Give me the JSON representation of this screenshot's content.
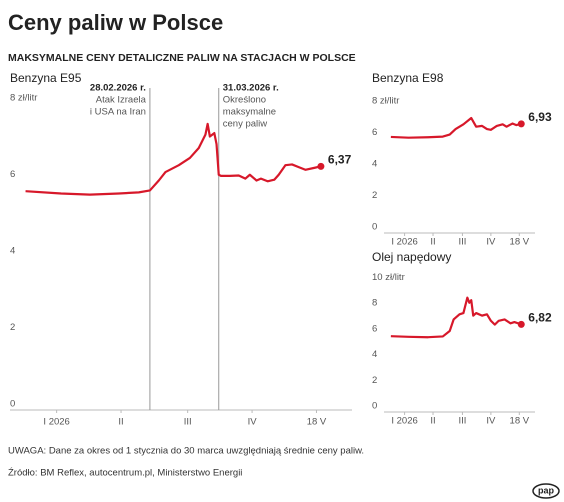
{
  "header": {
    "title": "Ceny paliw w Polsce",
    "subtitle": "MAKSYMALNE CENY DETALICZNE PALIW NA STACJACH W POLSCE"
  },
  "chart_data": [
    {
      "type": "line",
      "title": "Benzyna E95",
      "color": "#d7182a",
      "x": [
        2,
        18,
        31,
        44,
        53,
        58,
        62,
        65,
        71,
        76,
        80,
        83,
        84,
        85,
        87,
        88,
        89,
        90,
        94,
        98,
        101,
        103,
        106,
        108,
        111,
        114,
        116,
        119,
        122,
        125,
        128,
        132,
        135
      ],
      "values": [
        5.72,
        5.66,
        5.63,
        5.66,
        5.69,
        5.74,
        6.0,
        6.22,
        6.4,
        6.59,
        6.85,
        7.2,
        7.48,
        7.15,
        7.24,
        6.95,
        6.15,
        6.12,
        6.12,
        6.13,
        6.05,
        6.15,
        6.0,
        6.05,
        5.98,
        6.02,
        6.15,
        6.4,
        6.42,
        6.35,
        6.28,
        6.33,
        6.37
      ],
      "value_labels": [
        null,
        null,
        null,
        null,
        null,
        null,
        null,
        null,
        null,
        null,
        null,
        null,
        null,
        null,
        null,
        null,
        null,
        null,
        null,
        null,
        null,
        null,
        null,
        null,
        null,
        null,
        null,
        null,
        null,
        null,
        null,
        null,
        "6,37"
      ],
      "xlim": [
        -5,
        149
      ],
      "xticks": [
        {
          "value": 16,
          "label": "I 2026"
        },
        {
          "value": 45,
          "label": "II"
        },
        {
          "value": 75,
          "label": "III"
        },
        {
          "value": 104,
          "label": "IV"
        },
        {
          "value": 133,
          "label": "18 V"
        }
      ],
      "ylim": [
        0,
        8
      ],
      "yticks": [
        0,
        2,
        4,
        6,
        {
          "value": 8,
          "label": "8 zł/litr"
        }
      ],
      "grid": false,
      "annotations": [
        {
          "x": 58,
          "label": "28.02.2026 r.",
          "lines": [
            "Atak Izraela",
            "i USA na Iran"
          ]
        },
        {
          "x": 89,
          "label": "31.03.2026 r.",
          "lines": [
            "Określono",
            "maksymalne",
            "ceny paliw"
          ]
        }
      ]
    },
    {
      "type": "line",
      "title": "Benzyna E98",
      "color": "#d7182a",
      "x": [
        2,
        20,
        40,
        55,
        62,
        68,
        76,
        84,
        89,
        95,
        100,
        104,
        110,
        116,
        120,
        126,
        130,
        135
      ],
      "values": [
        6.1,
        6.05,
        6.08,
        6.12,
        6.25,
        6.6,
        6.9,
        7.3,
        6.75,
        6.8,
        6.6,
        6.55,
        6.8,
        6.9,
        6.75,
        6.95,
        6.85,
        6.93
      ],
      "value_labels": [
        null,
        null,
        null,
        null,
        null,
        null,
        null,
        null,
        null,
        null,
        null,
        null,
        null,
        null,
        null,
        null,
        null,
        "6,93"
      ],
      "xlim": [
        -5,
        149
      ],
      "xticks": [
        {
          "value": 16,
          "label": "I 2026"
        },
        {
          "value": 45,
          "label": "II"
        },
        {
          "value": 75,
          "label": "III"
        },
        {
          "value": 104,
          "label": "IV"
        },
        {
          "value": 133,
          "label": "18 V"
        }
      ],
      "ylim": [
        0,
        8
      ],
      "yticks": [
        0,
        2,
        4,
        6,
        {
          "value": 8,
          "label": "8 zł/litr"
        }
      ],
      "grid": false
    },
    {
      "type": "line",
      "title": "Olej napędowy",
      "color": "#d7182a",
      "x": [
        2,
        20,
        40,
        55,
        62,
        66,
        72,
        76,
        80,
        82,
        84,
        86,
        89,
        95,
        100,
        104,
        108,
        112,
        118,
        124,
        128,
        135
      ],
      "values": [
        5.9,
        5.85,
        5.82,
        5.88,
        6.3,
        7.2,
        7.6,
        7.7,
        8.9,
        8.5,
        8.7,
        7.5,
        7.7,
        7.5,
        7.6,
        7.1,
        6.8,
        7.1,
        7.2,
        6.9,
        7.0,
        6.82
      ],
      "value_labels": [
        null,
        null,
        null,
        null,
        null,
        null,
        null,
        null,
        null,
        null,
        null,
        null,
        null,
        null,
        null,
        null,
        null,
        null,
        null,
        null,
        null,
        "6,82"
      ],
      "xlim": [
        -5,
        149
      ],
      "xticks": [
        {
          "value": 16,
          "label": "I 2026"
        },
        {
          "value": 45,
          "label": "II"
        },
        {
          "value": 75,
          "label": "III"
        },
        {
          "value": 104,
          "label": "IV"
        },
        {
          "value": 133,
          "label": "18 V"
        }
      ],
      "ylim": [
        0,
        10
      ],
      "yticks": [
        0,
        2,
        4,
        6,
        8,
        {
          "value": 10,
          "label": "10 zł/litr"
        }
      ],
      "grid": false
    }
  ],
  "footer": {
    "note": "UWAGA: Dane za okres od 1 stycznia do 30 marca uwzględniają średnie ceny paliw.",
    "source": "Źródło: BM Reflex, autocentrum.pl, Ministerstwo Energii",
    "logo": "pap"
  }
}
